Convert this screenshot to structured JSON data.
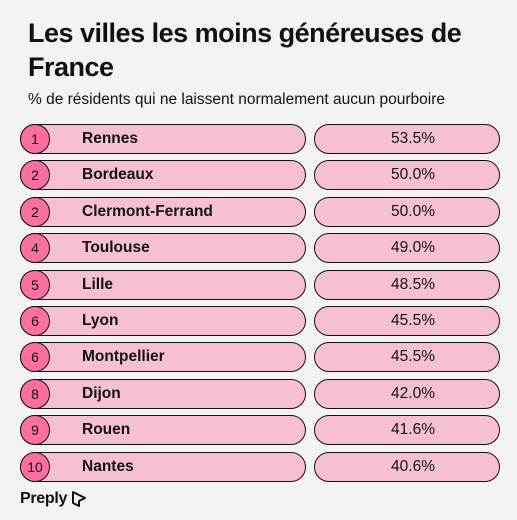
{
  "title": "Les villes les moins généreuses de France",
  "subtitle": "% de résidents qui ne laissent normalement aucun pourboire",
  "brand": "Preply",
  "colors": {
    "background": "#f3f3f3",
    "pill": "#f7bfd4",
    "rank_circle": "#fb6fa1",
    "text": "#121117"
  },
  "chart_data": {
    "type": "table",
    "title": "Les villes les moins généreuses de France",
    "subtitle": "% de résidents qui ne laissent normalement aucun pourboire",
    "rows": [
      {
        "rank": "1",
        "city": "Rennes",
        "value": "53.5%"
      },
      {
        "rank": "2",
        "city": "Bordeaux",
        "value": "50.0%"
      },
      {
        "rank": "2",
        "city": "Clermont-Ferrand",
        "value": "50.0%"
      },
      {
        "rank": "4",
        "city": "Toulouse",
        "value": "49.0%"
      },
      {
        "rank": "5",
        "city": "Lille",
        "value": "48.5%"
      },
      {
        "rank": "6",
        "city": "Lyon",
        "value": "45.5%"
      },
      {
        "rank": "6",
        "city": "Montpellier",
        "value": "45.5%"
      },
      {
        "rank": "8",
        "city": "Dijon",
        "value": "42.0%"
      },
      {
        "rank": "9",
        "city": "Rouen",
        "value": "41.6%"
      },
      {
        "rank": "10",
        "city": "Nantes",
        "value": "40.6%"
      }
    ]
  }
}
